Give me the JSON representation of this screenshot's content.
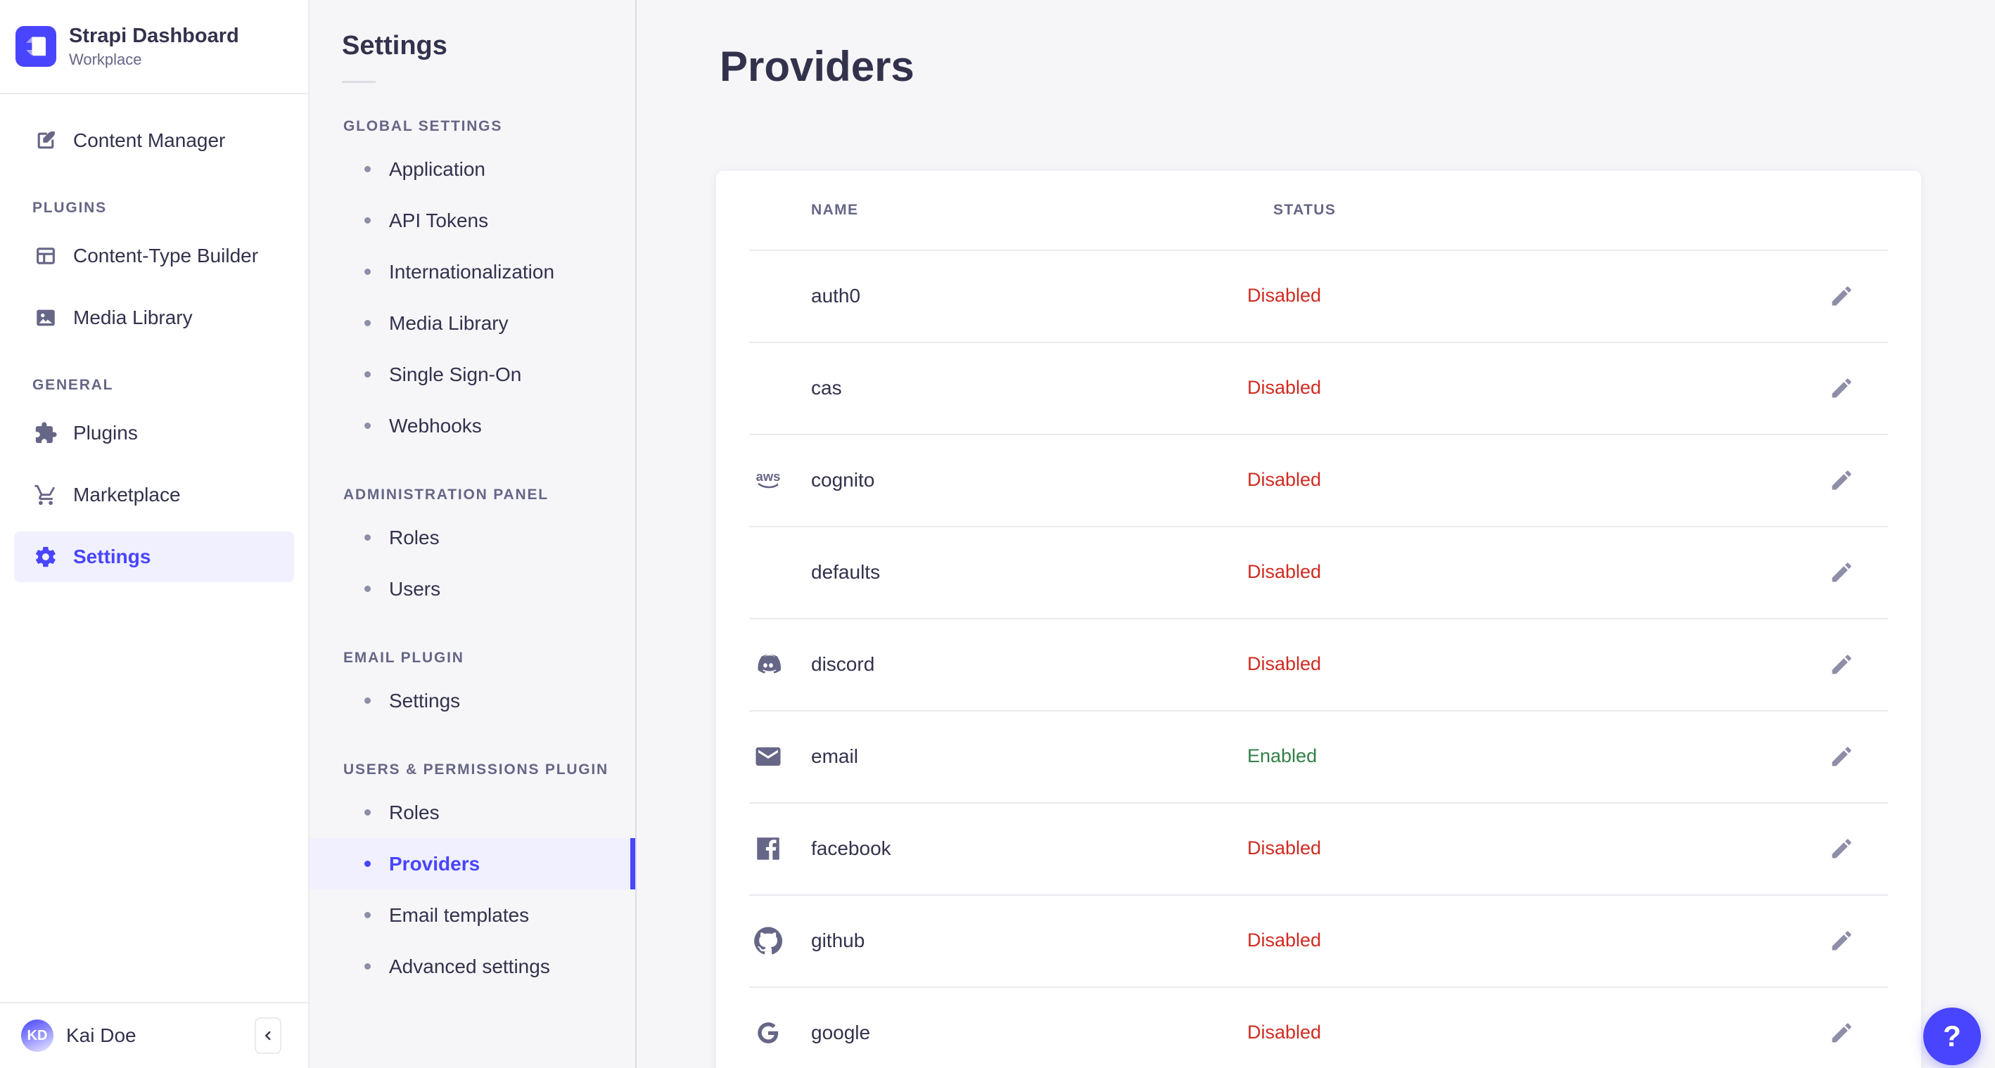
{
  "brand": {
    "name": "Strapi Dashboard",
    "workspace": "Workplace",
    "logo_icon": "strapi-logo"
  },
  "nav": {
    "primary": [
      {
        "label": "Content Manager",
        "icon": "feather-pen-icon",
        "active": false
      }
    ],
    "sections": [
      {
        "title": "PLUGINS",
        "items": [
          {
            "label": "Content-Type Builder",
            "icon": "layout-icon",
            "active": false
          },
          {
            "label": "Media Library",
            "icon": "image-icon",
            "active": false
          }
        ]
      },
      {
        "title": "GENERAL",
        "items": [
          {
            "label": "Plugins",
            "icon": "puzzle-icon",
            "active": false
          },
          {
            "label": "Marketplace",
            "icon": "cart-icon",
            "active": false
          },
          {
            "label": "Settings",
            "icon": "gear-icon",
            "active": true
          }
        ]
      }
    ],
    "footer": {
      "user_name": "Kai Doe",
      "user_initials": "KD",
      "collapse_icon": "chevron-left-icon"
    }
  },
  "subnav": {
    "title": "Settings",
    "sections": [
      {
        "title": "GLOBAL SETTINGS",
        "items": [
          {
            "label": "Application",
            "active": false
          },
          {
            "label": "API Tokens",
            "active": false
          },
          {
            "label": "Internationalization",
            "active": false
          },
          {
            "label": "Media Library",
            "active": false
          },
          {
            "label": "Single Sign-On",
            "active": false
          },
          {
            "label": "Webhooks",
            "active": false
          }
        ]
      },
      {
        "title": "ADMINISTRATION PANEL",
        "items": [
          {
            "label": "Roles",
            "active": false
          },
          {
            "label": "Users",
            "active": false
          }
        ]
      },
      {
        "title": "EMAIL PLUGIN",
        "items": [
          {
            "label": "Settings",
            "active": false
          }
        ]
      },
      {
        "title": "USERS & PERMISSIONS PLUGIN",
        "items": [
          {
            "label": "Roles",
            "active": false
          },
          {
            "label": "Providers",
            "active": true
          },
          {
            "label": "Email templates",
            "active": false
          },
          {
            "label": "Advanced settings",
            "active": false
          }
        ]
      }
    ]
  },
  "main": {
    "title": "Providers",
    "table": {
      "columns": [
        "NAME",
        "STATUS"
      ],
      "rows": [
        {
          "name": "auth0",
          "icon": null,
          "status": "Disabled"
        },
        {
          "name": "cas",
          "icon": null,
          "status": "Disabled"
        },
        {
          "name": "cognito",
          "icon": "aws-icon",
          "status": "Disabled"
        },
        {
          "name": "defaults",
          "icon": null,
          "status": "Disabled"
        },
        {
          "name": "discord",
          "icon": "discord-icon",
          "status": "Disabled"
        },
        {
          "name": "email",
          "icon": "envelope-icon",
          "status": "Enabled"
        },
        {
          "name": "facebook",
          "icon": "facebook-icon",
          "status": "Disabled"
        },
        {
          "name": "github",
          "icon": "github-icon",
          "status": "Disabled"
        },
        {
          "name": "google",
          "icon": "google-icon",
          "status": "Disabled"
        }
      ]
    }
  },
  "help": {
    "label": "?"
  },
  "colors": {
    "accent": "#4945ff",
    "accent_bg": "#f0f0ff",
    "danger": "#d02b20",
    "success": "#328048"
  }
}
